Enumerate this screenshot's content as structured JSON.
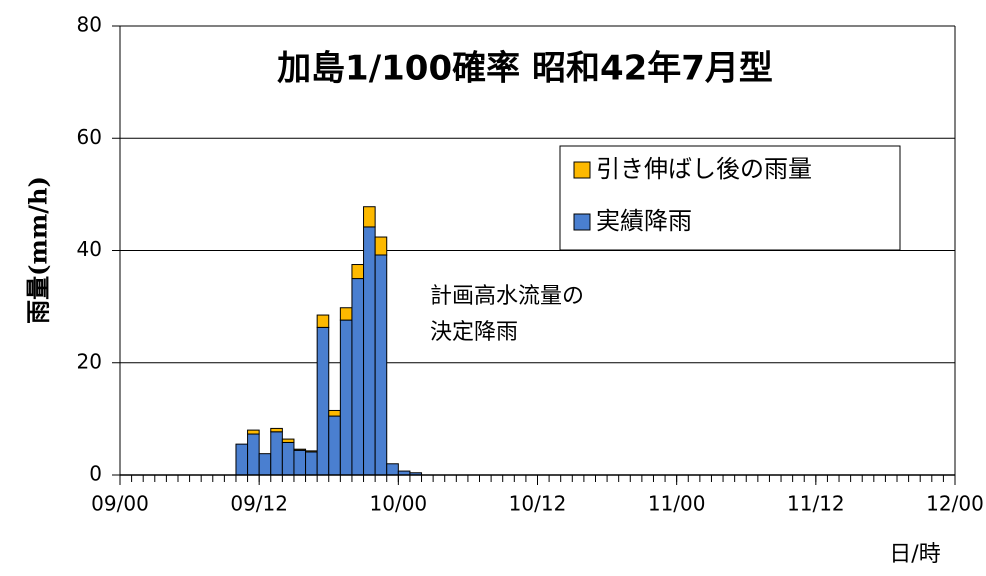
{
  "chart_data": {
    "type": "stacked_bar",
    "title": "加島1/100確率 昭和42年7月型",
    "y_label": "雨量(mm/h)",
    "x_label": "日/時",
    "annotation": [
      "計画高水流量の",
      "決定降雨"
    ],
    "x": [
      10,
      11,
      12,
      13,
      14,
      15,
      16,
      17,
      18,
      19,
      20,
      21,
      22,
      23,
      24,
      25
    ],
    "series": [
      {
        "name": "実績降雨",
        "color": "#4a7fd0",
        "values": [
          5.5,
          7.3,
          3.8,
          7.7,
          5.8,
          4.4,
          4.1,
          26.3,
          10.5,
          27.6,
          35,
          44.2,
          39.2,
          2,
          0.7,
          0.4
        ]
      },
      {
        "name": "引き伸ばし後の雨量",
        "color": "#fdb900",
        "values": [
          0,
          0.7,
          0,
          0.6,
          0.6,
          0.2,
          0.2,
          2.2,
          1.0,
          2.2,
          2.5,
          3.6,
          3.2,
          0,
          0,
          0
        ]
      }
    ],
    "xlim": [
      0,
      72
    ],
    "xticks": [
      {
        "value": 0,
        "label": "09/00"
      },
      {
        "value": 12,
        "label": "09/12"
      },
      {
        "value": 24,
        "label": "10/00"
      },
      {
        "value": 36,
        "label": "10/12"
      },
      {
        "value": 48,
        "label": "11/00"
      },
      {
        "value": 60,
        "label": "11/12"
      },
      {
        "value": 72,
        "label": "12/00"
      }
    ],
    "xminor_interval": 1,
    "ylim": [
      0,
      80
    ],
    "yticks": [
      0,
      20,
      40,
      60,
      80
    ],
    "grid": true
  }
}
